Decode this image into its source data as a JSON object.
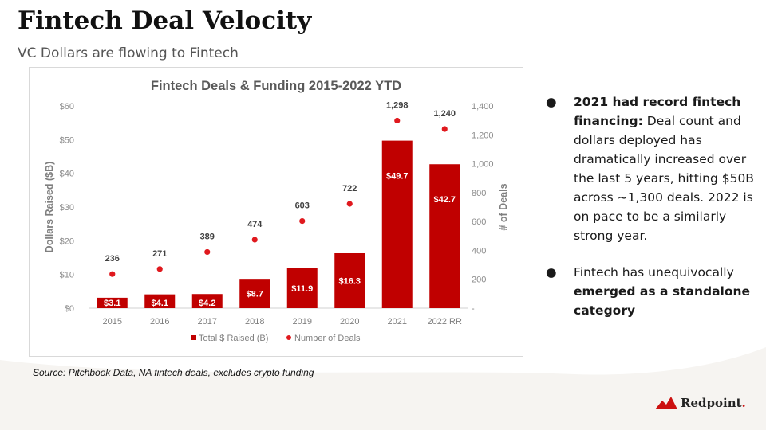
{
  "slide": {
    "title": "Fintech Deal Velocity",
    "subtitle": "VC Dollars are flowing to Fintech",
    "source": "Source: Pitchbook Data, NA fintech deals, excludes crypto funding"
  },
  "bullets": [
    {
      "bold": "2021 had record fintech financing:",
      "text_after": " Deal count and dollars deployed has dramatically increased over the last 5 years, hitting $50B across ~1,300 deals. 2022 is on pace to be a similarly strong year."
    },
    {
      "text_before": "Fintech has unequivocally ",
      "bold": "emerged as a standalone category"
    }
  ],
  "bullet_symbol": "●",
  "logo": {
    "text": "Redpoint",
    "dot": "."
  },
  "colors": {
    "accent": "#c00000",
    "dot": "#e0191e",
    "text": "#1a1a1a",
    "axis_text": "#8c8c8c",
    "chart_title": "#595959"
  },
  "chart_data": {
    "type": "bar",
    "title": "Fintech Deals & Funding 2015-2022 YTD",
    "categories": [
      "2015",
      "2016",
      "2017",
      "2018",
      "2019",
      "2020",
      "2021",
      "2022 RR"
    ],
    "series": [
      {
        "name": "Total $ Raised (B)",
        "type": "bar",
        "axis": "left",
        "values": [
          3.1,
          4.1,
          4.2,
          8.7,
          11.9,
          16.3,
          49.7,
          42.7
        ],
        "labels": [
          "$3.1",
          "$4.1",
          "$4.2",
          "$8.7",
          "$11.9",
          "$16.3",
          "$49.7",
          "$42.7"
        ],
        "color": "#c00000"
      },
      {
        "name": "Number of Deals",
        "type": "scatter",
        "axis": "right",
        "values": [
          236,
          271,
          389,
          474,
          603,
          722,
          1298,
          1240
        ],
        "labels": [
          "236",
          "271",
          "389",
          "474",
          "603",
          "722",
          "1,298",
          "1,240"
        ],
        "color": "#e0191e"
      }
    ],
    "ylabel": "Dollars Raised ($B)",
    "y2label": "# of Deals",
    "ylim": [
      0,
      60
    ],
    "y2lim": [
      0,
      1400
    ],
    "yticks": [
      "$0",
      "$10",
      "$20",
      "$30",
      "$40",
      "$50",
      "$60"
    ],
    "y2ticks": [
      "-",
      "200",
      "400",
      "600",
      "800",
      "1,000",
      "1,200",
      "1,400"
    ],
    "legend_placement": "bottom-center",
    "grid": false
  }
}
